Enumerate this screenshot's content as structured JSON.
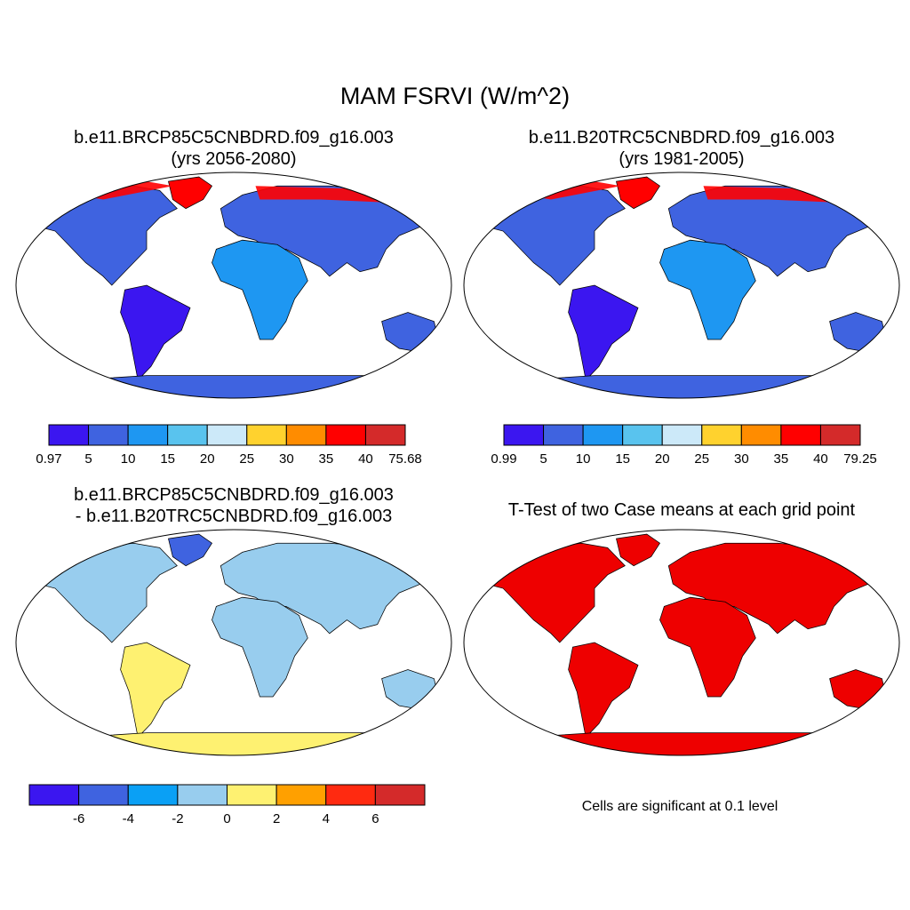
{
  "figure": {
    "title": "MAM FSRVI (W/m^2)"
  },
  "panels": [
    {
      "title_line1": "b.e11.BRCP85C5CNBDRD.f09_g16.003",
      "title_line2": "(yrs 2056-2080)",
      "palette": [
        "#3b16f0",
        "#3f63e0",
        "#1e97f2",
        "#59c3ee",
        "#cce9f9",
        "#ffd22e",
        "#ff8c00",
        "#ff0000",
        "#d42a2a"
      ],
      "colorbar_labels": [
        "0.97",
        "5",
        "10",
        "15",
        "20",
        "25",
        "30",
        "35",
        "40",
        "75.68"
      ]
    },
    {
      "title_line1": "b.e11.B20TRC5CNBDRD.f09_g16.003",
      "title_line2": "(yrs 1981-2005)",
      "palette": [
        "#3b16f0",
        "#3f63e0",
        "#1e97f2",
        "#59c3ee",
        "#cce9f9",
        "#ffd22e",
        "#ff8c00",
        "#ff0000",
        "#d42a2a"
      ],
      "colorbar_labels": [
        "0.99",
        "5",
        "10",
        "15",
        "20",
        "25",
        "30",
        "35",
        "40",
        "79.25"
      ]
    },
    {
      "title_line1": "b.e11.BRCP85C5CNBDRD.f09_g16.003",
      "title_line2": "- b.e11.B20TRC5CNBDRD.f09_g16.003",
      "palette": [
        "#3b16f0",
        "#3f63e0",
        "#0aa0f5",
        "#98cdee",
        "#fef171",
        "#ffa000",
        "#ff2a10",
        "#d42a2a"
      ],
      "colorbar_labels": [
        "-6",
        "-4",
        "-2",
        "0",
        "2",
        "4",
        "6"
      ]
    },
    {
      "title": "T-Test of two Case means at each grid point",
      "note": "Cells are significant at 0.1 level",
      "fill_color": "#ee0000"
    }
  ]
}
